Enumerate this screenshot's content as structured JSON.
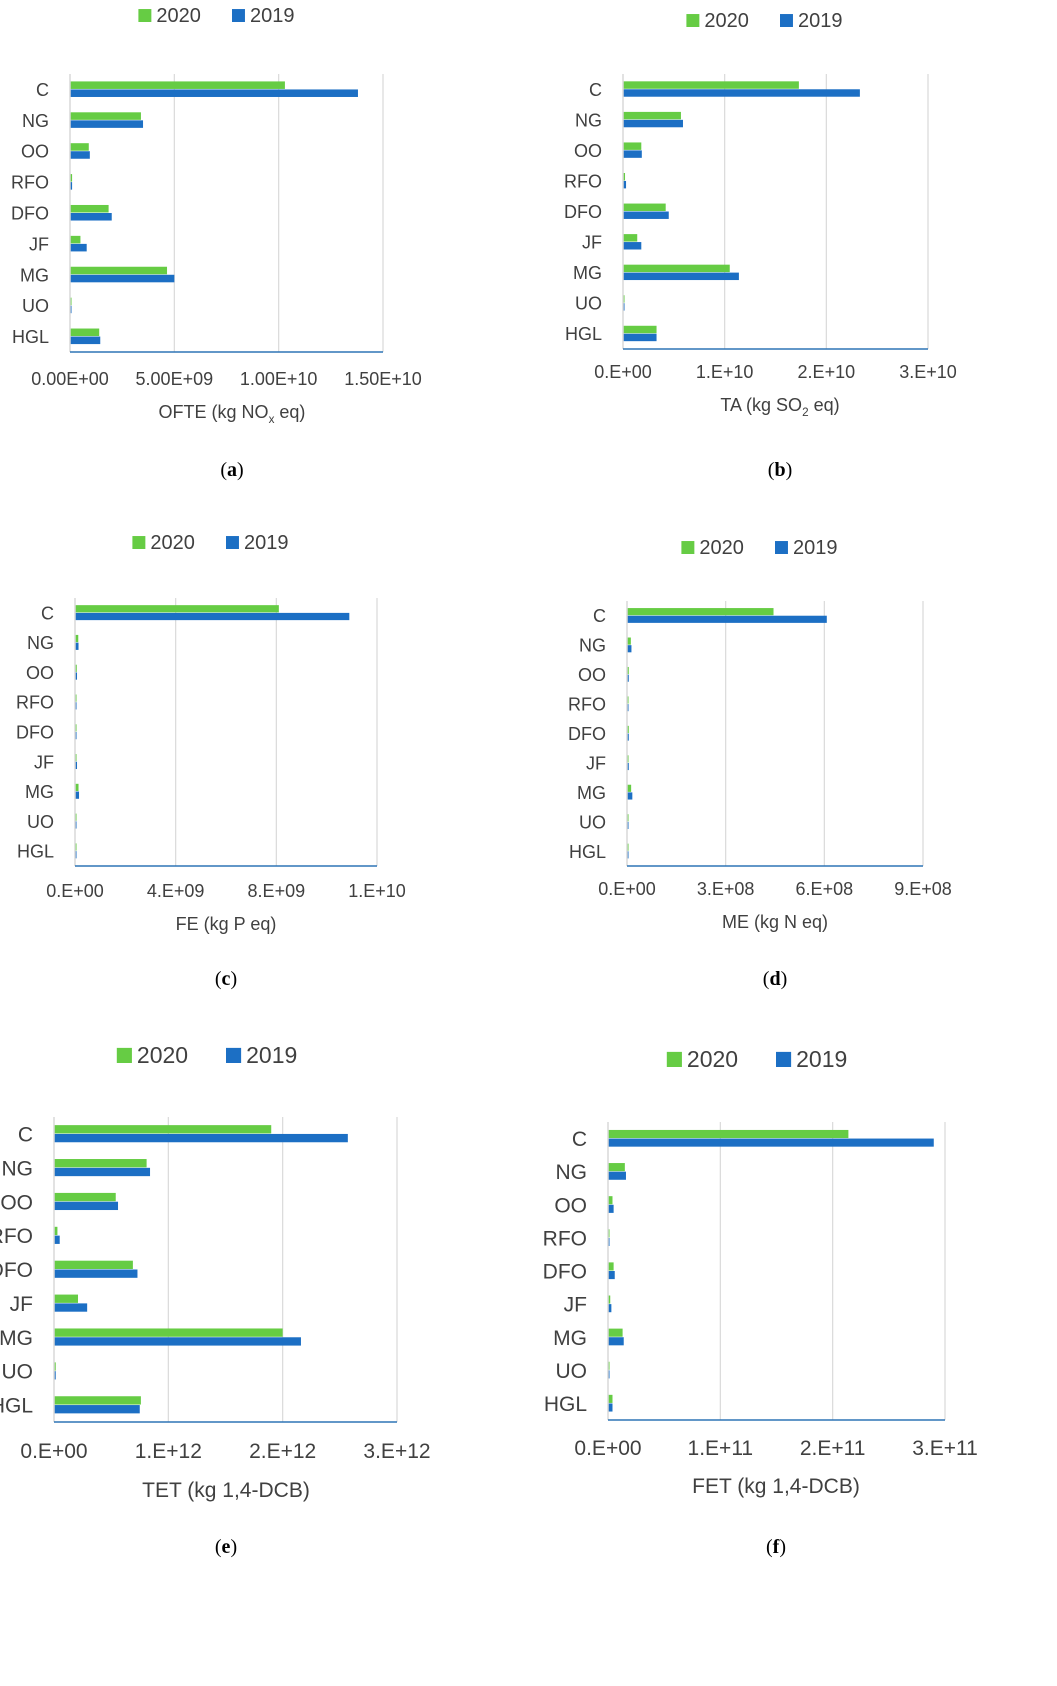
{
  "colors": {
    "2020": "#66cc44",
    "2019": "#1c6fc4",
    "grid": "#d9d9d9",
    "axis": "#2e75b6",
    "text": "#404040"
  },
  "chart_data": [
    {
      "panel": "a",
      "type": "bar",
      "orientation": "horizontal",
      "categories": [
        "C",
        "NG",
        "OO",
        "RFO",
        "DFO",
        "JF",
        "MG",
        "UO",
        "HGL"
      ],
      "series": [
        {
          "name": "2020",
          "values": [
            10300000000.0,
            3400000000.0,
            900000000.0,
            100000000.0,
            1850000000.0,
            500000000.0,
            4650000000.0,
            30000000.0,
            1400000000.0
          ]
        },
        {
          "name": "2019",
          "values": [
            13800000000.0,
            3500000000.0,
            950000000.0,
            100000000.0,
            2000000000.0,
            800000000.0,
            5000000000.0,
            30000000.0,
            1450000000.0
          ]
        }
      ],
      "xlim": [
        0,
        15000000000.0
      ],
      "xticks": [
        "0.00E+00",
        "5.00E+09",
        "1.00E+10",
        "1.50E+10"
      ],
      "xlabel_main": "OFTE (kg NO",
      "xlabel_sub": "x",
      "xlabel_tail": " eq)",
      "grid": true,
      "legend": "top-center"
    },
    {
      "panel": "b",
      "type": "bar",
      "orientation": "horizontal",
      "categories": [
        "C",
        "NG",
        "OO",
        "RFO",
        "DFO",
        "JF",
        "MG",
        "UO",
        "HGL"
      ],
      "series": [
        {
          "name": "2020",
          "values": [
            17300000000.0,
            5700000000.0,
            1800000000.0,
            200000000.0,
            4200000000.0,
            1400000000.0,
            10500000000.0,
            100000000.0,
            3300000000.0
          ]
        },
        {
          "name": "2019",
          "values": [
            23300000000.0,
            5900000000.0,
            1850000000.0,
            300000000.0,
            4500000000.0,
            1800000000.0,
            11400000000.0,
            100000000.0,
            3300000000.0
          ]
        }
      ],
      "xlim": [
        0,
        30000000000.0
      ],
      "xticks": [
        "0.E+00",
        "1.E+10",
        "2.E+10",
        "3.E+10"
      ],
      "xlabel_main": "TA (kg SO",
      "xlabel_sub": "2",
      "xlabel_tail": " eq)",
      "grid": true,
      "legend": "top-center"
    },
    {
      "panel": "c",
      "type": "bar",
      "orientation": "horizontal",
      "categories": [
        "C",
        "NG",
        "OO",
        "RFO",
        "DFO",
        "JF",
        "MG",
        "UO",
        "HGL"
      ],
      "series": [
        {
          "name": "2020",
          "values": [
            8100000000.0,
            130000000.0,
            70000000.0,
            50000000.0,
            60000000.0,
            60000000.0,
            140000000.0,
            40000000.0,
            50000000.0
          ]
        },
        {
          "name": "2019",
          "values": [
            10900000000.0,
            140000000.0,
            80000000.0,
            50000000.0,
            60000000.0,
            80000000.0,
            160000000.0,
            40000000.0,
            50000000.0
          ]
        }
      ],
      "xlim": [
        0,
        12000000000.0
      ],
      "xticks": [
        "0.E+00",
        "4.E+09",
        "8.E+09",
        "1.E+10"
      ],
      "xlabel_main": "FE (kg P eq)",
      "xlabel_sub": "",
      "xlabel_tail": "",
      "grid": true,
      "legend": "top-center"
    },
    {
      "panel": "d",
      "type": "bar",
      "orientation": "horizontal",
      "categories": [
        "C",
        "NG",
        "OO",
        "RFO",
        "DFO",
        "JF",
        "MG",
        "UO",
        "HGL"
      ],
      "series": [
        {
          "name": "2020",
          "values": [
            495000000.0,
            13000000.0,
            6000000.0,
            5000000.0,
            6000000.0,
            5000000.0,
            14000000.0,
            4000000.0,
            5000000.0
          ]
        },
        {
          "name": "2019",
          "values": [
            675000000.0,
            15000000.0,
            6000000.0,
            5000000.0,
            6000000.0,
            6000000.0,
            18000000.0,
            4000000.0,
            5000000.0
          ]
        }
      ],
      "xlim": [
        0,
        1000000000.0
      ],
      "xticks": [
        "0.E+00",
        "3.E+08",
        "6.E+08",
        "9.E+08"
      ],
      "xlabel_main": "ME (kg N eq)",
      "xlabel_sub": "",
      "xlabel_tail": "",
      "grid": true,
      "legend": "top-center"
    },
    {
      "panel": "e",
      "type": "bar",
      "orientation": "horizontal",
      "categories": [
        "C",
        "NG",
        "OO",
        "RFO",
        "DFO",
        "JF",
        "MG",
        "UO",
        "HGL"
      ],
      "series": [
        {
          "name": "2020",
          "values": [
            1900000000000.0,
            810000000000.0,
            540000000000.0,
            30000000000.0,
            690000000000.0,
            210000000000.0,
            2000000000000.0,
            15000000000.0,
            760000000000.0
          ]
        },
        {
          "name": "2019",
          "values": [
            2570000000000.0,
            840000000000.0,
            560000000000.0,
            50000000000.0,
            730000000000.0,
            290000000000.0,
            2160000000000.0,
            15000000000.0,
            750000000000.0
          ]
        }
      ],
      "xlim": [
        0,
        3000000000000.0
      ],
      "xticks": [
        "0.E+00",
        "1.E+12",
        "2.E+12",
        "3.E+12"
      ],
      "xlabel_main": "TET (kg 1,4-DCB)",
      "xlabel_sub": "",
      "xlabel_tail": "",
      "grid": true,
      "legend": "top-center"
    },
    {
      "panel": "f",
      "type": "bar",
      "orientation": "horizontal",
      "categories": [
        "C",
        "NG",
        "OO",
        "RFO",
        "DFO",
        "JF",
        "MG",
        "UO",
        "HGL"
      ],
      "series": [
        {
          "name": "2020",
          "values": [
            214000000000.0,
            15000000000.0,
            4000000000.0,
            1000000000.0,
            5000000000.0,
            2000000000.0,
            13000000000.0,
            1000000000.0,
            4000000000.0
          ]
        },
        {
          "name": "2019",
          "values": [
            290000000000.0,
            16000000000.0,
            5000000000.0,
            1000000000.0,
            6000000000.0,
            3000000000.0,
            14000000000.0,
            1000000000.0,
            4000000000.0
          ]
        }
      ],
      "xlim": [
        0,
        300000000000.0
      ],
      "xticks": [
        "0.E+00",
        "1.E+11",
        "2.E+11",
        "3.E+11"
      ],
      "xlabel_main": "FET (kg 1,4-DCB)",
      "xlabel_sub": "",
      "xlabel_tail": "",
      "grid": true,
      "legend": "top-center"
    }
  ]
}
